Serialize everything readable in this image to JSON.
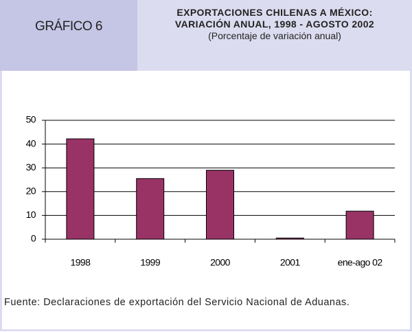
{
  "chart_data": {
    "type": "bar",
    "label": "GRÁFICO 6",
    "title": "EXPORTACIONES CHILENAS A MÉXICO:",
    "title2": "VARIACIÓN ANUAL, 1998 - AGOSTO 2002",
    "subtitle": "(Porcentaje de variación anual)",
    "categories": [
      "1998",
      "1999",
      "2000",
      "2001",
      "ene-ago 02"
    ],
    "values": [
      42.2,
      25.5,
      29,
      0.5,
      11.8
    ],
    "color": "#993366",
    "ylim": [
      0,
      50
    ],
    "yticks": [
      0,
      10,
      20,
      30,
      40,
      50
    ],
    "grid": true,
    "source": "Fuente: Declaraciones de exportación del Servicio Nacional de Aduanas."
  }
}
